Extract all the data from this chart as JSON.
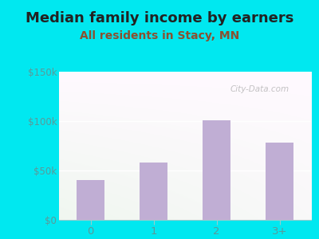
{
  "title": "Median family income by earners",
  "subtitle": "All residents in Stacy, MN",
  "categories": [
    "0",
    "1",
    "2",
    "3+"
  ],
  "values": [
    40000,
    58000,
    101000,
    78000
  ],
  "bar_color": "#c0aed4",
  "ylim": [
    0,
    150000
  ],
  "ytick_labels": [
    "$0",
    "$50k",
    "$100k",
    "$150k"
  ],
  "ytick_values": [
    0,
    50000,
    100000,
    150000
  ],
  "background_outer": "#00e8f0",
  "title_fontsize": 13,
  "subtitle_fontsize": 10,
  "title_color": "#222222",
  "subtitle_color": "#8B5030",
  "tick_color": "#5a9a9a",
  "watermark": "City-Data.com"
}
